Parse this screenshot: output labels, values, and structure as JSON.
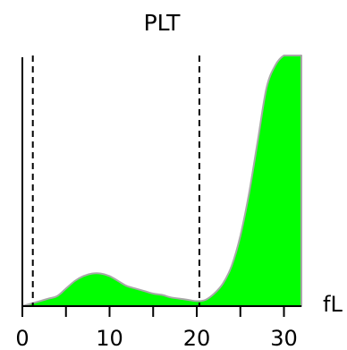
{
  "chart_data": {
    "type": "area",
    "title": "PLT",
    "xlabel": "fL",
    "ylabel": "",
    "xlim": [
      0,
      32
    ],
    "x_ticks": [
      0,
      10,
      20,
      30
    ],
    "x_minor_ticks": [
      5,
      15,
      25
    ],
    "thresholds": [
      1.2,
      20.3
    ],
    "series": [
      {
        "x": [
          0,
          1,
          2,
          3,
          4,
          5,
          6,
          7,
          8,
          9,
          10,
          11,
          12,
          13,
          14,
          15,
          16,
          17,
          18,
          19,
          20,
          21,
          22,
          23,
          24,
          25,
          26,
          27,
          28,
          29,
          30,
          31,
          32
        ],
        "values": [
          0,
          0.01,
          0.02,
          0.03,
          0.04,
          0.07,
          0.1,
          0.12,
          0.13,
          0.13,
          0.12,
          0.1,
          0.08,
          0.07,
          0.06,
          0.05,
          0.045,
          0.035,
          0.03,
          0.025,
          0.02,
          0.025,
          0.05,
          0.09,
          0.16,
          0.28,
          0.45,
          0.66,
          0.87,
          0.96,
          1.0,
          1.0,
          1.0
        ],
        "color": "#00ff00"
      }
    ],
    "colors": {
      "fill": "#00ff00",
      "outline": "#a8a8a8",
      "axis": "#000000",
      "threshold": "#000000"
    }
  }
}
